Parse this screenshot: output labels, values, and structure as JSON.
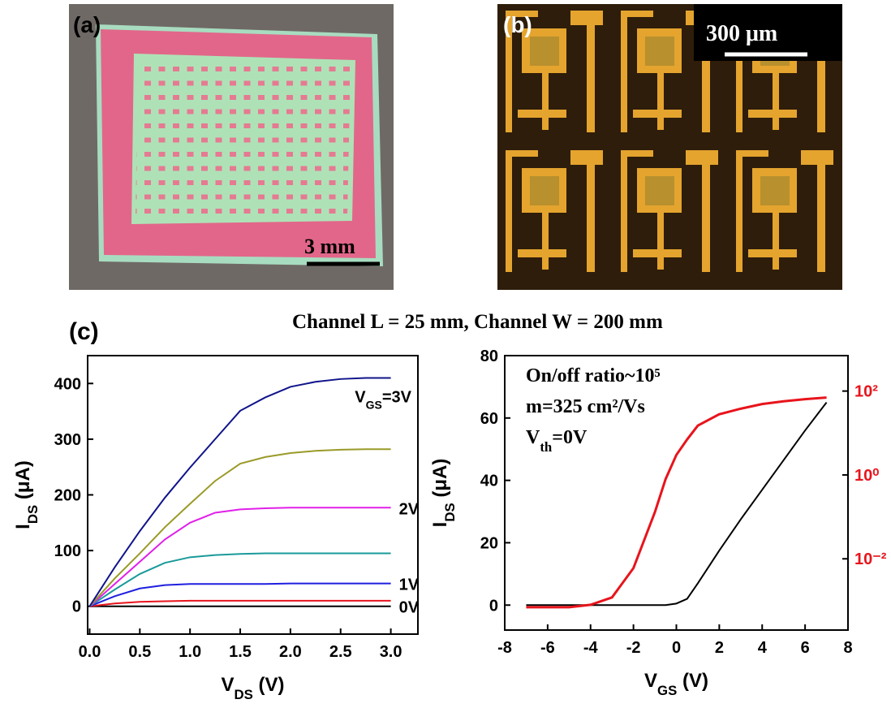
{
  "panels": {
    "a": {
      "label": "(a)",
      "scale_bar": "3 mm"
    },
    "b": {
      "label": "(b)",
      "scale_bar": "300 μm"
    },
    "c": {
      "label": "(c)",
      "heading": "Channel L = 25 mm, Channel W = 200 mm"
    }
  },
  "chart_data": [
    {
      "type": "line",
      "x": [
        0,
        0.25,
        0.5,
        0.75,
        1,
        1.25,
        1.5,
        1.75,
        2,
        2.25,
        2.5,
        2.75,
        3
      ],
      "xlim": [
        -0.02,
        3.27
      ],
      "xticks": [
        {
          "value": 0,
          "label": "0.0"
        },
        0.5,
        {
          "value": 1,
          "label": "1.0"
        },
        1.5,
        {
          "value": 2,
          "label": "2.0"
        },
        2.5,
        {
          "value": 3,
          "label": "3.0"
        }
      ],
      "ylim": [
        -50,
        450
      ],
      "yticks": [
        0,
        100,
        200,
        300,
        400
      ],
      "x_label": [
        "V",
        "DS",
        " (V)"
      ],
      "y_label": [
        "I",
        "DS",
        " (μA)"
      ],
      "series": [
        {
          "label_parts": [
            "0V"
          ],
          "color": "#000000",
          "values": [
            0,
            0,
            0,
            0,
            0,
            0,
            0,
            0,
            0,
            0,
            0,
            0,
            0
          ]
        },
        {
          "color": "#e8141c",
          "values": [
            0,
            5,
            8,
            9,
            10,
            10,
            10,
            10,
            10,
            10,
            10,
            10,
            10
          ]
        },
        {
          "label_parts": [
            "1V"
          ],
          "color": "#1f1fe0",
          "values": [
            0,
            18,
            32,
            38,
            40,
            40,
            40,
            40,
            41,
            41,
            41,
            41,
            41
          ]
        },
        {
          "color": "#1a9a9a",
          "values": [
            0,
            30,
            58,
            78,
            88,
            92,
            94,
            95,
            95,
            95,
            95,
            95,
            95
          ]
        },
        {
          "label_parts": [
            "2V"
          ],
          "color": "#e020e8",
          "values": [
            0,
            40,
            80,
            120,
            150,
            168,
            174,
            176,
            177,
            177,
            177,
            177,
            177
          ]
        },
        {
          "color": "#9a9a28",
          "values": [
            0,
            50,
            95,
            142,
            184,
            225,
            256,
            268,
            275,
            279,
            281,
            282,
            282
          ]
        },
        {
          "label_parts": [
            "V",
            "GS",
            "=3V"
          ],
          "color": "#10148a",
          "values": [
            0,
            70,
            135,
            195,
            249,
            300,
            351,
            375,
            394,
            403,
            408,
            410,
            410
          ]
        }
      ]
    },
    {
      "type": "line",
      "x": [
        -7,
        -6,
        -5,
        -4,
        -3,
        -2,
        -1,
        -0.5,
        0,
        0.5,
        1,
        2,
        3,
        4,
        5,
        6,
        7
      ],
      "xlim": [
        -8,
        8
      ],
      "xticks": [
        -8,
        -6,
        -4,
        -2,
        0,
        2,
        4,
        6,
        8
      ],
      "ylim": [
        -8,
        80
      ],
      "yticks": [
        0,
        20,
        40,
        60,
        80
      ],
      "y2log": true,
      "y2lim": [
        0.0002,
        700
      ],
      "y2ticks": [
        {
          "value": 0.01,
          "label": "10⁻²"
        },
        {
          "value": 1,
          "label": "10⁰"
        },
        {
          "value": 100,
          "label": "10²"
        }
      ],
      "x_label": [
        "V",
        "GS",
        " (V)"
      ],
      "y_label": [
        "I",
        "DS",
        " (μA)"
      ],
      "annotations": [
        [
          "On/off ratio~10⁵"
        ],
        [
          "m=325 cm²/Vs"
        ],
        [
          "V",
          "th",
          "=0V"
        ]
      ],
      "series": [
        {
          "color": "#000000",
          "values": [
            0,
            0,
            0,
            0,
            0,
            0,
            0,
            0,
            0.5,
            2,
            7,
            17.5,
            27.5,
            37,
            46.5,
            56,
            65
          ]
        },
        {
          "color": "#e8141c",
          "axis": "y2",
          "values": [
            0.0007,
            0.0007,
            0.0007,
            0.0008,
            0.0012,
            0.006,
            0.13,
            0.8,
            3,
            7,
            15,
            28,
            38,
            49,
            57,
            64,
            70
          ]
        }
      ]
    }
  ]
}
